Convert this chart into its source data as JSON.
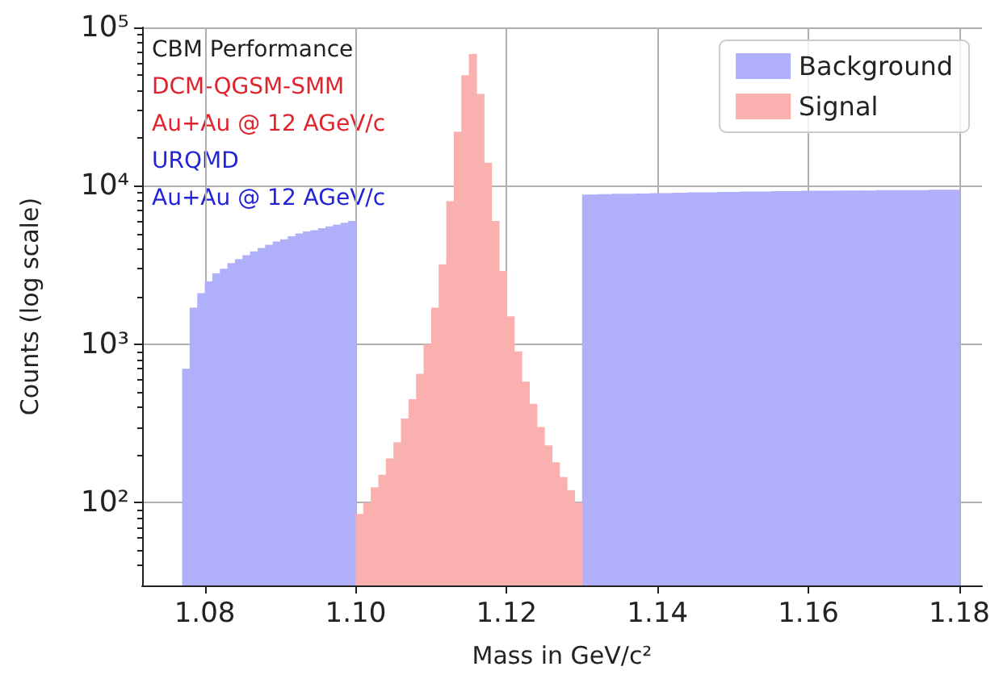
{
  "chart_data": {
    "type": "histogram",
    "xlabel": "Mass in GeV/c²",
    "ylabel": "Counts (log scale)",
    "annotations": [
      "CBM Performance",
      "DCM-QGSM-SMM",
      "Au+Au @ 12 AGeV/c",
      "URQMD",
      "Au+Au @ 12 AGeV/c"
    ],
    "bins": [
      1.077,
      1.078,
      1.079,
      1.08,
      1.081,
      1.082,
      1.083,
      1.084,
      1.085,
      1.086,
      1.087,
      1.088,
      1.089,
      1.09,
      1.091,
      1.092,
      1.093,
      1.094,
      1.095,
      1.096,
      1.097,
      1.098,
      1.099,
      1.1,
      1.101,
      1.102,
      1.103,
      1.104,
      1.105,
      1.106,
      1.107,
      1.108,
      1.109,
      1.11,
      1.111,
      1.112,
      1.113,
      1.114,
      1.115,
      1.116,
      1.117,
      1.118,
      1.119,
      1.12,
      1.121,
      1.122,
      1.123,
      1.124,
      1.125,
      1.126,
      1.127,
      1.128,
      1.129,
      1.13,
      1.131,
      1.132,
      1.133,
      1.134,
      1.135,
      1.136,
      1.137,
      1.138,
      1.139,
      1.14,
      1.141,
      1.142,
      1.143,
      1.144,
      1.145,
      1.146,
      1.147,
      1.148,
      1.149,
      1.15,
      1.151,
      1.152,
      1.153,
      1.154,
      1.155,
      1.156,
      1.157,
      1.158,
      1.159,
      1.16,
      1.161,
      1.162,
      1.163,
      1.164,
      1.165,
      1.166,
      1.167,
      1.168,
      1.169,
      1.17,
      1.171,
      1.172,
      1.173,
      1.174,
      1.175,
      1.176,
      1.177,
      1.178,
      1.179,
      1.18
    ],
    "series": [
      {
        "name": "Background",
        "color": "#b0b0fa",
        "values": [
          700,
          1700,
          2100,
          2500,
          2800,
          3000,
          3250,
          3450,
          3650,
          3850,
          4050,
          4250,
          4450,
          4600,
          4800,
          5000,
          5150,
          5250,
          5400,
          5550,
          5700,
          5850,
          6000,
          null,
          null,
          null,
          null,
          null,
          null,
          null,
          null,
          null,
          null,
          null,
          null,
          null,
          null,
          null,
          null,
          null,
          null,
          null,
          null,
          null,
          null,
          null,
          null,
          null,
          null,
          null,
          null,
          null,
          null,
          8800,
          8800,
          8850,
          8850,
          8900,
          8900,
          8900,
          8950,
          8950,
          9000,
          9000,
          9000,
          9050,
          9050,
          9100,
          9100,
          9100,
          9100,
          9150,
          9150,
          9150,
          9200,
          9200,
          9200,
          9200,
          9250,
          9250,
          9250,
          9250,
          9300,
          9300,
          9300,
          9300,
          9300,
          9350,
          9350,
          9350,
          9350,
          9350,
          9400,
          9400,
          9400,
          9400,
          9400,
          9400,
          9400,
          9450,
          9450,
          9450,
          9450
        ]
      },
      {
        "name": "Signal",
        "color": "#fbb0b0",
        "values": [
          null,
          null,
          null,
          null,
          null,
          null,
          null,
          null,
          null,
          null,
          null,
          null,
          null,
          null,
          null,
          null,
          null,
          null,
          null,
          null,
          null,
          null,
          null,
          85,
          100,
          125,
          150,
          190,
          240,
          340,
          450,
          650,
          1000,
          1700,
          3200,
          8000,
          22000,
          50000,
          68000,
          38000,
          14000,
          6000,
          2900,
          1500,
          900,
          580,
          420,
          300,
          230,
          180,
          145,
          120,
          100,
          null,
          null,
          null,
          null,
          null,
          null,
          null,
          null,
          null,
          null,
          null,
          null,
          null,
          null,
          null,
          null,
          null,
          null,
          null,
          null,
          null,
          null,
          null,
          null,
          null,
          null,
          null,
          null,
          null,
          null,
          null,
          null,
          null,
          null,
          null,
          null,
          null,
          null,
          null,
          null,
          null,
          null,
          null,
          null,
          null,
          null,
          null,
          null,
          null,
          null
        ]
      }
    ],
    "xlim": [
      1.0717,
      1.183
    ],
    "xticks": [
      {
        "value": 1.08,
        "label": "1.08"
      },
      {
        "value": 1.1,
        "label": "1.10"
      },
      {
        "value": 1.12,
        "label": "1.12"
      },
      {
        "value": 1.14,
        "label": "1.14"
      },
      {
        "value": 1.16,
        "label": "1.16"
      },
      {
        "value": 1.18,
        "label": "1.18"
      }
    ],
    "ylim": [
      30,
      100000
    ],
    "yticks": [
      {
        "value": 100,
        "label": "10²"
      },
      {
        "value": 1000,
        "label": "10³"
      },
      {
        "value": 10000,
        "label": "10⁴"
      },
      {
        "value": 100000,
        "label": "10⁵"
      }
    ],
    "log": "y",
    "grid": true,
    "legend": "top right"
  }
}
